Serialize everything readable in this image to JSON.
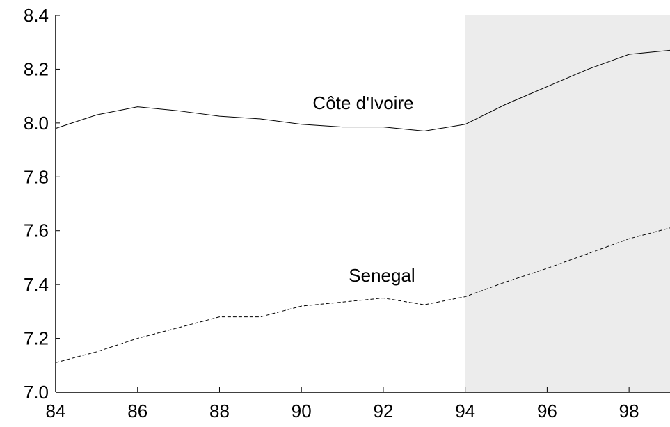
{
  "chart_data": {
    "type": "line",
    "x": [
      84,
      85,
      86,
      87,
      88,
      89,
      90,
      91,
      92,
      93,
      94,
      95,
      96,
      97,
      98,
      99
    ],
    "series": [
      {
        "name": "Côte d'Ivoire",
        "color": "#000000",
        "dash": "solid",
        "values": [
          7.98,
          8.03,
          8.06,
          8.045,
          8.025,
          8.015,
          7.995,
          7.985,
          7.985,
          7.97,
          7.995,
          8.07,
          8.135,
          8.2,
          8.255,
          8.27
        ]
      },
      {
        "name": "Senegal",
        "color": "#000000",
        "dash": "dashed",
        "values": [
          7.11,
          7.15,
          7.2,
          7.24,
          7.28,
          7.28,
          7.32,
          7.335,
          7.35,
          7.325,
          7.355,
          7.41,
          7.46,
          7.515,
          7.57,
          7.61
        ]
      }
    ],
    "xlim": [
      84,
      99
    ],
    "xticks": [
      84,
      86,
      88,
      90,
      92,
      94,
      96,
      98
    ],
    "ylim": [
      7.0,
      8.4
    ],
    "yticks": [
      {
        "value": 7.0,
        "label": "7.0"
      },
      7.2,
      7.4,
      7.6,
      7.8,
      {
        "value": 8.0,
        "label": "8.0"
      },
      8.2,
      8.4
    ],
    "shaded_region": {
      "from": 94,
      "to": 99,
      "color": "#ececec"
    },
    "grid": false
  }
}
